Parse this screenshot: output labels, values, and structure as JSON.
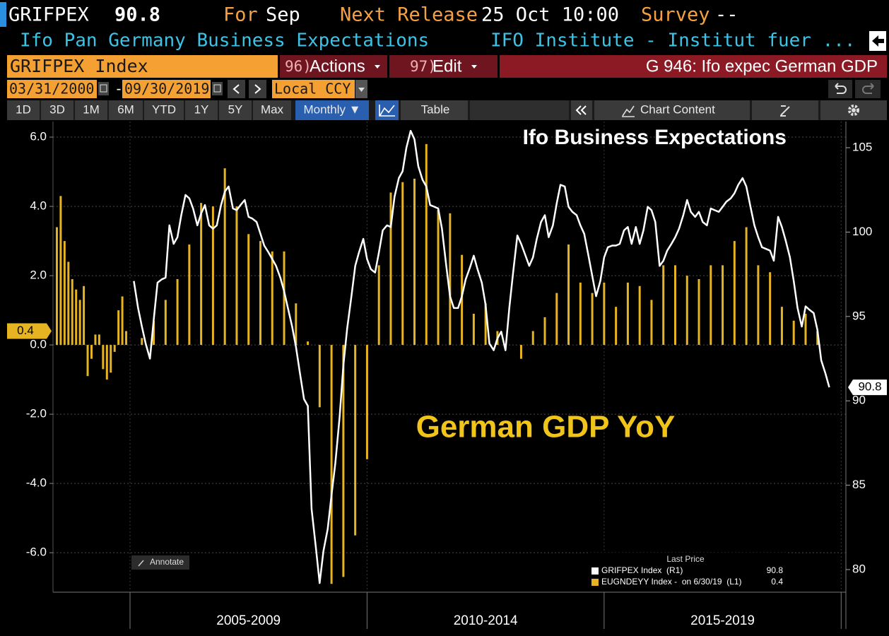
{
  "header": {
    "ticker": "GRIFPEX",
    "last": 90.8,
    "for_label": "For",
    "for_value": "Sep",
    "release_label": "Next Release",
    "release_value": "25 Oct 10:00",
    "survey_label": "Survey",
    "survey_value": "--",
    "description": "Ifo Pan Germany Business Expectations",
    "source": "IFO Institute - Institut fuer ..."
  },
  "toolbar": {
    "security": "GRIFPEX Index",
    "actions_code": "96)",
    "actions": "Actions",
    "edit_code": "97)",
    "edit": "Edit",
    "page_title": "G 946: Ifo expec German GDP",
    "start_date": "03/31/2000",
    "date_separator": "-",
    "end_date": "09/30/2019",
    "currency": "Local CCY",
    "ranges": [
      "1D",
      "3D",
      "1M",
      "6M",
      "YTD",
      "1Y",
      "5Y",
      "Max"
    ],
    "frequency": "Monthly ▼",
    "table": "Table",
    "chart_content": "Chart Content"
  },
  "chart_data": {
    "type": "combo",
    "annotations": [
      "Ifo Business Expectations",
      "German GDP YoY"
    ],
    "annotate": "Annotate",
    "legend_title": "Last Price",
    "x_labels": [
      "2005-2009",
      "2010-2014",
      "2015-2019"
    ],
    "xlim": [
      2000,
      2020.1
    ],
    "xticks": [
      2005,
      2010,
      2015,
      2020
    ],
    "ylim": [
      -7.14,
      6.45
    ],
    "yticks": [
      {
        "value": -6,
        "label": "-6.0"
      },
      {
        "value": -4,
        "label": "-4.0"
      },
      {
        "value": -2,
        "label": "-2.0"
      },
      {
        "value": 0,
        "label": "0.0"
      },
      {
        "value": 2,
        "label": "2.0"
      },
      {
        "value": 4,
        "label": "4.0"
      },
      {
        "value": 6,
        "label": "6.0"
      }
    ],
    "y2lim": [
      78.66,
      106.55
    ],
    "y2ticks": [
      80,
      85,
      90,
      95,
      100,
      105
    ],
    "grid": true,
    "series": [
      {
        "name": "GRIFPEX Index  (R1)",
        "type": "line",
        "axis": "y2",
        "color": "#ffffff",
        "x": [
          2005.08,
          2005.17,
          2005.25,
          2005.33,
          2005.42,
          2005.5,
          2005.58,
          2005.67,
          2005.75,
          2005.83,
          2005.92,
          2006,
          2006.08,
          2006.17,
          2006.25,
          2006.33,
          2006.42,
          2006.5,
          2006.58,
          2006.67,
          2006.75,
          2006.83,
          2006.92,
          2007,
          2007.08,
          2007.17,
          2007.25,
          2007.33,
          2007.42,
          2007.5,
          2007.58,
          2007.67,
          2007.75,
          2007.83,
          2007.92,
          2008,
          2008.08,
          2008.17,
          2008.25,
          2008.33,
          2008.42,
          2008.5,
          2008.58,
          2008.67,
          2008.75,
          2008.83,
          2008.92,
          2009,
          2009.08,
          2009.17,
          2009.25,
          2009.33,
          2009.42,
          2009.5,
          2009.58,
          2009.67,
          2009.75,
          2009.83,
          2009.92,
          2010,
          2010.08,
          2010.17,
          2010.25,
          2010.33,
          2010.42,
          2010.5,
          2010.58,
          2010.67,
          2010.75,
          2010.83,
          2010.92,
          2011,
          2011.08,
          2011.17,
          2011.25,
          2011.33,
          2011.42,
          2011.5,
          2011.58,
          2011.67,
          2011.75,
          2011.83,
          2011.92,
          2012,
          2012.08,
          2012.17,
          2012.25,
          2012.33,
          2012.42,
          2012.5,
          2012.58,
          2012.67,
          2012.75,
          2012.83,
          2012.92,
          2013,
          2013.08,
          2013.17,
          2013.25,
          2013.33,
          2013.42,
          2013.5,
          2013.58,
          2013.67,
          2013.75,
          2013.83,
          2013.92,
          2014,
          2014.08,
          2014.17,
          2014.25,
          2014.33,
          2014.42,
          2014.5,
          2014.58,
          2014.67,
          2014.75,
          2014.83,
          2014.92,
          2015,
          2015.08,
          2015.17,
          2015.25,
          2015.33,
          2015.42,
          2015.5,
          2015.58,
          2015.67,
          2015.75,
          2015.83,
          2015.92,
          2016,
          2016.08,
          2016.17,
          2016.25,
          2016.33,
          2016.42,
          2016.5,
          2016.58,
          2016.67,
          2016.75,
          2016.83,
          2016.92,
          2017,
          2017.08,
          2017.17,
          2017.25,
          2017.33,
          2017.42,
          2017.5,
          2017.58,
          2017.67,
          2017.75,
          2017.83,
          2017.92,
          2018,
          2018.08,
          2018.17,
          2018.25,
          2018.33,
          2018.42,
          2018.5,
          2018.58,
          2018.67,
          2018.75,
          2018.83,
          2018.92,
          2019,
          2019.08,
          2019.17,
          2019.25,
          2019.33,
          2019.42,
          2019.5,
          2019.58,
          2019.67,
          2019.75
        ],
        "values": [
          97.1,
          95.5,
          94.4,
          93.4,
          92.5,
          94.8,
          97.0,
          97.2,
          97.3,
          100.4,
          99.3,
          99.7,
          101.0,
          102.2,
          102.0,
          101.4,
          100.4,
          101.1,
          101.6,
          100.4,
          100.2,
          100.4,
          101.6,
          102.4,
          102.7,
          101.4,
          101.3,
          101.6,
          101.9,
          100.9,
          100.8,
          100.6,
          99.9,
          99.2,
          98.8,
          98.4,
          98.0,
          97.3,
          96.5,
          95.5,
          94.4,
          93.2,
          91.7,
          90.1,
          89.7,
          83.6,
          81.3,
          79.2,
          81.1,
          82.4,
          84.4,
          86.3,
          89.0,
          92.1,
          94.3,
          96.2,
          98.0,
          98.8,
          99.6,
          98.4,
          97.8,
          97.6,
          98.8,
          100.1,
          100.4,
          100.3,
          102.1,
          103.2,
          103.6,
          105.0,
          106.0,
          105.5,
          103.9,
          103.1,
          102.7,
          101.6,
          101.5,
          101.4,
          100.2,
          98.0,
          96.2,
          95.5,
          95.5,
          96.2,
          97.2,
          97.9,
          98.6,
          97.8,
          97.0,
          95.7,
          93.4,
          93.0,
          93.7,
          94.1,
          93.0,
          95.5,
          97.6,
          99.8,
          99.3,
          98.7,
          98.0,
          98.5,
          99.6,
          100.6,
          101.0,
          99.7,
          100.4,
          101.7,
          102.8,
          102.7,
          101.5,
          101.2,
          101.0,
          100.4,
          99.9,
          98.6,
          97.4,
          96.2,
          97.1,
          98.5,
          99.1,
          99.2,
          99.2,
          99.3,
          100.1,
          100.3,
          99.3,
          100.3,
          99.3,
          100.1,
          101.5,
          101.3,
          100.6,
          98.0,
          98.3,
          98.9,
          99.3,
          99.7,
          100.2,
          101.0,
          101.9,
          101.2,
          100.9,
          101.2,
          100.6,
          100.4,
          101.4,
          101.3,
          101.2,
          101.5,
          101.8,
          102.0,
          102.3,
          102.8,
          103.2,
          102.7,
          101.6,
          100.4,
          99.7,
          99.1,
          99.0,
          98.9,
          98.3,
          100.9,
          100.3,
          99.5,
          98.5,
          97.1,
          95.5,
          94.4,
          95.6,
          95.4,
          95.2,
          94.2,
          92.4,
          91.6,
          90.8
        ]
      },
      {
        "name": "EUGNDEYY Index -  on 6/30/19  (L1)",
        "type": "bar",
        "axis": "y",
        "color": "#e6b422",
        "x": [
          2000.25,
          2000.5,
          2000.75,
          2001,
          2001.25,
          2001.5,
          2001.75,
          2002,
          2002.25,
          2002.5,
          2002.75,
          2003,
          2003.25,
          2003.5,
          2003.75,
          2004,
          2004.25,
          2004.5,
          2004.75,
          2005,
          2005.25,
          2005.5,
          2005.75,
          2006,
          2006.25,
          2006.5,
          2006.75,
          2007,
          2007.25,
          2007.5,
          2007.75,
          2008,
          2008.25,
          2008.5,
          2008.75,
          2009,
          2009.25,
          2009.5,
          2009.75,
          2010,
          2010.25,
          2010.5,
          2010.75,
          2011,
          2011.25,
          2011.5,
          2011.75,
          2012,
          2012.25,
          2012.5,
          2012.75,
          2013,
          2013.25,
          2013.5,
          2013.75,
          2014,
          2014.25,
          2014.5,
          2014.75,
          2015,
          2015.25,
          2015.5,
          2015.75,
          2016,
          2016.25,
          2016.5,
          2016.75,
          2017,
          2017.25,
          2017.5,
          2017.75,
          2018,
          2018.25,
          2018.5,
          2018.75,
          2019,
          2019.25,
          2019.5
        ],
        "values": [
          3.4,
          4.3,
          3.0,
          2.4,
          1.9,
          1.6,
          1.3,
          1.7,
          -0.9,
          -0.4,
          0.3,
          0.3,
          -0.7,
          -1.0,
          -0.8,
          -0.2,
          1.0,
          1.4,
          0.4,
          0.0,
          0.2,
          0.7,
          1.3,
          1.9,
          2.9,
          4.1,
          4.0,
          5.1,
          4.0,
          3.2,
          3.0,
          2.7,
          2.7,
          1.2,
          0.1,
          -1.8,
          -6.9,
          -6.7,
          -5.5,
          -3.3,
          2.3,
          4.4,
          4.7,
          4.8,
          5.8,
          3.9,
          3.8,
          2.6,
          0.9,
          1.2,
          0.4,
          0.0,
          -0.4,
          0.4,
          0.8,
          1.5,
          2.9,
          1.8,
          1.5,
          1.8,
          1.1,
          1.8,
          1.7,
          1.3,
          2.3,
          2.3,
          2.0,
          1.9,
          2.3,
          2.3,
          3.0,
          3.4,
          2.3,
          2.1,
          1.1,
          0.7,
          0.9,
          0.4
        ]
      }
    ]
  }
}
